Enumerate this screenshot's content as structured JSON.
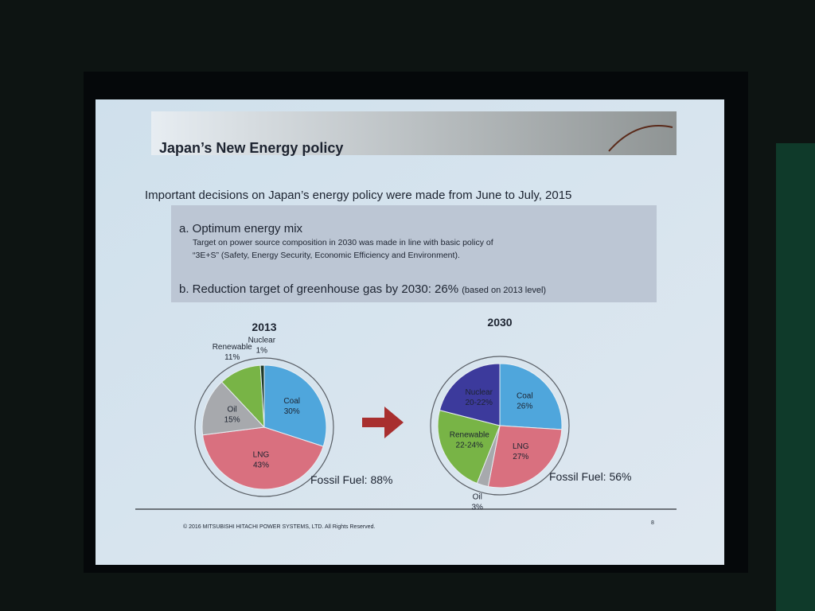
{
  "header": {
    "title": "Japan’s New Energy policy"
  },
  "intro": "Important decisions on Japan’s energy policy were made from June to July, 2015",
  "points": [
    {
      "label": "a. Optimum energy mix",
      "detail_lines": [
        "Target on power source composition in 2030 was made in line with basic policy of",
        "“3E+S” (Safety, Energy Security, Economic Efficiency and Environment)."
      ]
    },
    {
      "label": "b. Reduction target of greenhouse gas by 2030: 26%",
      "note": "(based on 2013 level)"
    }
  ],
  "chart_data": [
    {
      "type": "pie",
      "title": "2013",
      "categories": [
        "Coal",
        "LNG",
        "Oil",
        "Renewable",
        "Nuclear"
      ],
      "values": [
        30,
        43,
        15,
        11,
        1
      ],
      "value_labels": [
        "30%",
        "43%",
        "15%",
        "11%",
        "1%"
      ],
      "colors": [
        "#4fa6dc",
        "#d9707f",
        "#a7a9ad",
        "#78b446",
        "#1f3a2a"
      ],
      "annotation": "Fossil Fuel: 88%"
    },
    {
      "type": "pie",
      "title": "2030",
      "categories": [
        "Coal",
        "LNG",
        "Oil",
        "Renewable",
        "Nuclear"
      ],
      "values": [
        26,
        27,
        3,
        23,
        21
      ],
      "value_labels": [
        "26%",
        "27%",
        "3%",
        "22-24%",
        "20-22%"
      ],
      "colors": [
        "#4fa6dc",
        "#d9707f",
        "#a7a9ad",
        "#78b446",
        "#3c3a9c"
      ],
      "annotation": "Fossil Fuel: 56%"
    }
  ],
  "footer": {
    "copyright": "© 2016 MITSUBISHI HITACHI POWER SYSTEMS, LTD. All Rights Reserved.",
    "page": "8"
  }
}
